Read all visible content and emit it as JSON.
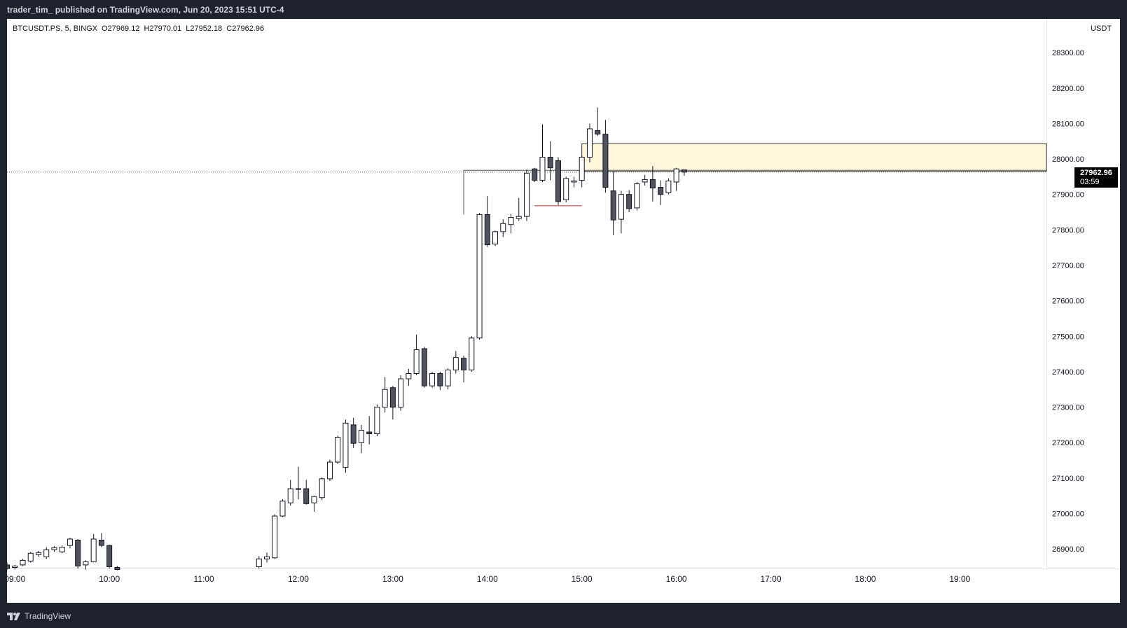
{
  "header": {
    "publish_text": "trader_tim_ published on TradingView.com, Jun 20, 2023 15:51 UTC-4"
  },
  "legend": {
    "symbol": "BTCUSDT.PS, 5, BINGX",
    "open": "O27969.12",
    "high": "H27970.01",
    "low": "L27952.18",
    "close": "C27962.96"
  },
  "currency": "USDT",
  "price_tag": {
    "price": "27962.96",
    "countdown": "03:59"
  },
  "footer": {
    "brand": "TradingView"
  },
  "colors": {
    "bull_body": "#ffffff",
    "bear_body": "#50535e",
    "candle_outline": "#131722",
    "zone_fill": "#fff8dd",
    "zone_border": "#333333",
    "low_line": "#c62828"
  },
  "chart_data": {
    "type": "candlestick",
    "title": "",
    "symbol": "BTCUSDT.PS",
    "timeframe_minutes": 5,
    "x_ticks": [
      "09:00",
      "10:00",
      "11:00",
      "12:00",
      "13:00",
      "14:00",
      "15:00",
      "16:00",
      "17:00",
      "18:00",
      "19:00"
    ],
    "y_ticks": [
      "26900.00",
      "27000.00",
      "27100.00",
      "27200.00",
      "27300.00",
      "27400.00",
      "27500.00",
      "27600.00",
      "27700.00",
      "27800.00",
      "27900.00",
      "28000.00",
      "28100.00",
      "28200.00",
      "28300.00"
    ],
    "ylim": [
      26845,
      28395
    ],
    "x_range": [
      "08:55",
      "19:55"
    ],
    "last_price": 27962.96,
    "supply_zone": {
      "from_time": "15:00",
      "top": 28043,
      "bottom": 27965
    },
    "resistance_level": {
      "from_time": "13:45",
      "price": 27968
    },
    "low_level": {
      "from_time": "14:30",
      "to_time": "15:00",
      "price": 27868
    },
    "candles": [
      {
        "t": "08:55",
        "o": 26855,
        "h": 26862,
        "l": 26840,
        "c": 26845
      },
      {
        "t": "09:00",
        "o": 26848,
        "h": 26855,
        "l": 26842,
        "c": 26852
      },
      {
        "t": "09:05",
        "o": 26855,
        "h": 26872,
        "l": 26852,
        "c": 26868
      },
      {
        "t": "09:10",
        "o": 26866,
        "h": 26892,
        "l": 26862,
        "c": 26888
      },
      {
        "t": "09:15",
        "o": 26884,
        "h": 26895,
        "l": 26878,
        "c": 26890
      },
      {
        "t": "09:20",
        "o": 26878,
        "h": 26905,
        "l": 26872,
        "c": 26898
      },
      {
        "t": "09:25",
        "o": 26898,
        "h": 26908,
        "l": 26892,
        "c": 26904
      },
      {
        "t": "09:30",
        "o": 26892,
        "h": 26910,
        "l": 26888,
        "c": 26905
      },
      {
        "t": "09:35",
        "o": 26910,
        "h": 26932,
        "l": 26902,
        "c": 26928
      },
      {
        "t": "09:40",
        "o": 26925,
        "h": 26928,
        "l": 26845,
        "c": 26852
      },
      {
        "t": "09:45",
        "o": 26855,
        "h": 26868,
        "l": 26842,
        "c": 26864
      },
      {
        "t": "09:50",
        "o": 26864,
        "h": 26942,
        "l": 26862,
        "c": 26928
      },
      {
        "t": "09:55",
        "o": 26925,
        "h": 26945,
        "l": 26905,
        "c": 26910
      },
      {
        "t": "10:00",
        "o": 26910,
        "h": 26912,
        "l": 26845,
        "c": 26850
      },
      {
        "t": "10:05",
        "o": 26848,
        "h": 26852,
        "l": 26840,
        "c": 26842
      },
      {
        "t": "11:35",
        "o": 26850,
        "h": 26880,
        "l": 26845,
        "c": 26872
      },
      {
        "t": "11:40",
        "o": 26872,
        "h": 26890,
        "l": 26862,
        "c": 26878
      },
      {
        "t": "11:45",
        "o": 26875,
        "h": 26998,
        "l": 26872,
        "c": 26993
      },
      {
        "t": "11:50",
        "o": 26993,
        "h": 27040,
        "l": 26990,
        "c": 27035
      },
      {
        "t": "11:55",
        "o": 27030,
        "h": 27095,
        "l": 27022,
        "c": 27070
      },
      {
        "t": "12:00",
        "o": 27070,
        "h": 27132,
        "l": 27040,
        "c": 27068
      },
      {
        "t": "12:05",
        "o": 27070,
        "h": 27095,
        "l": 27025,
        "c": 27028
      },
      {
        "t": "12:10",
        "o": 27030,
        "h": 27050,
        "l": 27005,
        "c": 27048
      },
      {
        "t": "12:15",
        "o": 27045,
        "h": 27102,
        "l": 27038,
        "c": 27098
      },
      {
        "t": "12:20",
        "o": 27098,
        "h": 27152,
        "l": 27092,
        "c": 27145
      },
      {
        "t": "12:25",
        "o": 27145,
        "h": 27220,
        "l": 27140,
        "c": 27215
      },
      {
        "t": "12:30",
        "o": 27130,
        "h": 27265,
        "l": 27115,
        "c": 27255
      },
      {
        "t": "12:35",
        "o": 27250,
        "h": 27270,
        "l": 27185,
        "c": 27198
      },
      {
        "t": "12:40",
        "o": 27200,
        "h": 27250,
        "l": 27170,
        "c": 27235
      },
      {
        "t": "12:45",
        "o": 27230,
        "h": 27275,
        "l": 27195,
        "c": 27225
      },
      {
        "t": "12:50",
        "o": 27225,
        "h": 27308,
        "l": 27218,
        "c": 27300
      },
      {
        "t": "12:55",
        "o": 27300,
        "h": 27385,
        "l": 27285,
        "c": 27350
      },
      {
        "t": "13:00",
        "o": 27355,
        "h": 27360,
        "l": 27265,
        "c": 27300
      },
      {
        "t": "13:05",
        "o": 27300,
        "h": 27390,
        "l": 27290,
        "c": 27380
      },
      {
        "t": "13:10",
        "o": 27380,
        "h": 27408,
        "l": 27360,
        "c": 27395
      },
      {
        "t": "13:15",
        "o": 27395,
        "h": 27505,
        "l": 27390,
        "c": 27462
      },
      {
        "t": "13:20",
        "o": 27465,
        "h": 27470,
        "l": 27355,
        "c": 27360
      },
      {
        "t": "13:25",
        "o": 27360,
        "h": 27400,
        "l": 27355,
        "c": 27395
      },
      {
        "t": "13:30",
        "o": 27395,
        "h": 27400,
        "l": 27348,
        "c": 27360
      },
      {
        "t": "13:35",
        "o": 27360,
        "h": 27410,
        "l": 27350,
        "c": 27405
      },
      {
        "t": "13:40",
        "o": 27405,
        "h": 27458,
        "l": 27395,
        "c": 27440
      },
      {
        "t": "13:45",
        "o": 27438,
        "h": 27445,
        "l": 27370,
        "c": 27405
      },
      {
        "t": "13:50",
        "o": 27405,
        "h": 27500,
        "l": 27400,
        "c": 27495
      },
      {
        "t": "13:55",
        "o": 27495,
        "h": 27848,
        "l": 27490,
        "c": 27843
      },
      {
        "t": "14:00",
        "o": 27843,
        "h": 27895,
        "l": 27752,
        "c": 27758
      },
      {
        "t": "14:05",
        "o": 27760,
        "h": 27798,
        "l": 27755,
        "c": 27795
      },
      {
        "t": "14:10",
        "o": 27795,
        "h": 27830,
        "l": 27780,
        "c": 27818
      },
      {
        "t": "14:15",
        "o": 27815,
        "h": 27845,
        "l": 27790,
        "c": 27835
      },
      {
        "t": "14:20",
        "o": 27832,
        "h": 27890,
        "l": 27825,
        "c": 27838
      },
      {
        "t": "14:25",
        "o": 27838,
        "h": 27970,
        "l": 27825,
        "c": 27960
      },
      {
        "t": "14:30",
        "o": 27972,
        "h": 27975,
        "l": 27935,
        "c": 27940
      },
      {
        "t": "14:35",
        "o": 27940,
        "h": 28098,
        "l": 27935,
        "c": 28005
      },
      {
        "t": "14:40",
        "o": 28005,
        "h": 28050,
        "l": 27940,
        "c": 27975
      },
      {
        "t": "14:45",
        "o": 27995,
        "h": 28005,
        "l": 27870,
        "c": 27880
      },
      {
        "t": "14:50",
        "o": 27885,
        "h": 27950,
        "l": 27878,
        "c": 27945
      },
      {
        "t": "14:55",
        "o": 27935,
        "h": 27950,
        "l": 27920,
        "c": 27938
      },
      {
        "t": "15:00",
        "o": 27940,
        "h": 28010,
        "l": 27920,
        "c": 28005
      },
      {
        "t": "15:05",
        "o": 28005,
        "h": 28100,
        "l": 27990,
        "c": 28085
      },
      {
        "t": "15:10",
        "o": 28080,
        "h": 28145,
        "l": 28065,
        "c": 28070
      },
      {
        "t": "15:15",
        "o": 28070,
        "h": 28110,
        "l": 27905,
        "c": 27920
      },
      {
        "t": "15:20",
        "o": 27910,
        "h": 27965,
        "l": 27785,
        "c": 27828
      },
      {
        "t": "15:25",
        "o": 27830,
        "h": 27910,
        "l": 27790,
        "c": 27900
      },
      {
        "t": "15:30",
        "o": 27900,
        "h": 27912,
        "l": 27850,
        "c": 27860
      },
      {
        "t": "15:35",
        "o": 27862,
        "h": 27935,
        "l": 27855,
        "c": 27930
      },
      {
        "t": "15:40",
        "o": 27935,
        "h": 27955,
        "l": 27925,
        "c": 27942
      },
      {
        "t": "15:45",
        "o": 27942,
        "h": 27980,
        "l": 27880,
        "c": 27918
      },
      {
        "t": "15:50",
        "o": 27920,
        "h": 27940,
        "l": 27870,
        "c": 27900
      },
      {
        "t": "15:55",
        "o": 27905,
        "h": 27945,
        "l": 27900,
        "c": 27938
      },
      {
        "t": "16:00",
        "o": 27935,
        "h": 27975,
        "l": 27910,
        "c": 27972
      },
      {
        "t": "16:05",
        "o": 27969.12,
        "h": 27970.01,
        "l": 27952.18,
        "c": 27962.96
      }
    ]
  }
}
